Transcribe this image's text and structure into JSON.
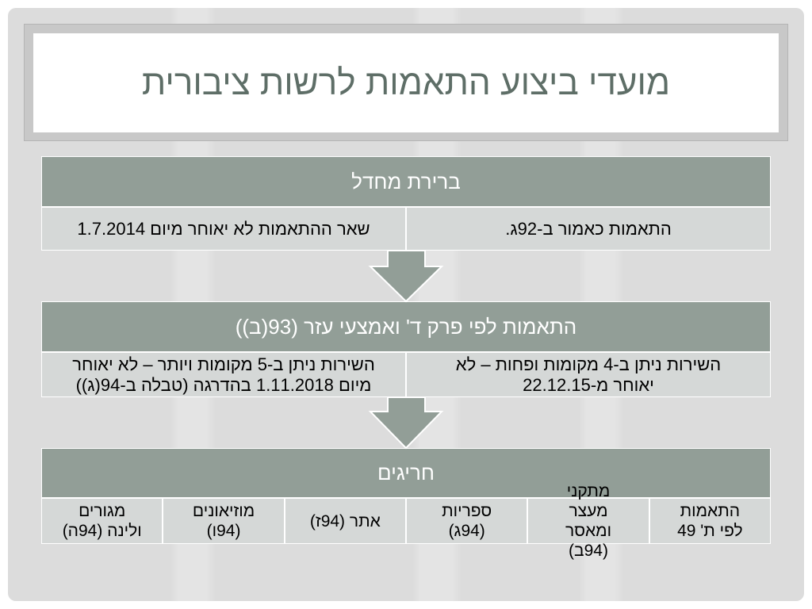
{
  "slide": {
    "title": "מועדי ביצוע התאמות לרשות ציבורית"
  },
  "tables": [
    {
      "header": "ברירת מחדל",
      "cells": [
        "התאמות כאמור ב-92ג.",
        "שאר ההתאמות לא יאוחר מיום 1.7.2014"
      ]
    },
    {
      "header": "התאמות לפי פרק ד' ואמצעי עזר (93(ב))",
      "cells": [
        "השירות ניתן ב-4 מקומות ופחות – לא\nיאוחר מ-22.12.15",
        "השירות ניתן ב-5 מקומות ויותר – לא יאוחר\nמיום 1.11.2018 בהדרגה (טבלה ב-94(ג))"
      ]
    },
    {
      "header": "חריגים",
      "cells": [
        "התאמות\nלפי ת' 49",
        "מתקני\nמעצר\nומאסר\n(94ב)",
        "ספריות\n(94ג)",
        "אתר (94ז)",
        "מוזיאונים\n(94ו)",
        "מגורים\nולינה (94ה)"
      ]
    }
  ],
  "icons": {
    "connector": "down-arrow-icon"
  },
  "theme": {
    "header_fill": "#929e97",
    "cell_fill": "#d5d8d7",
    "title_color": "#5e6e67",
    "header_text_color": "#ffffff"
  }
}
